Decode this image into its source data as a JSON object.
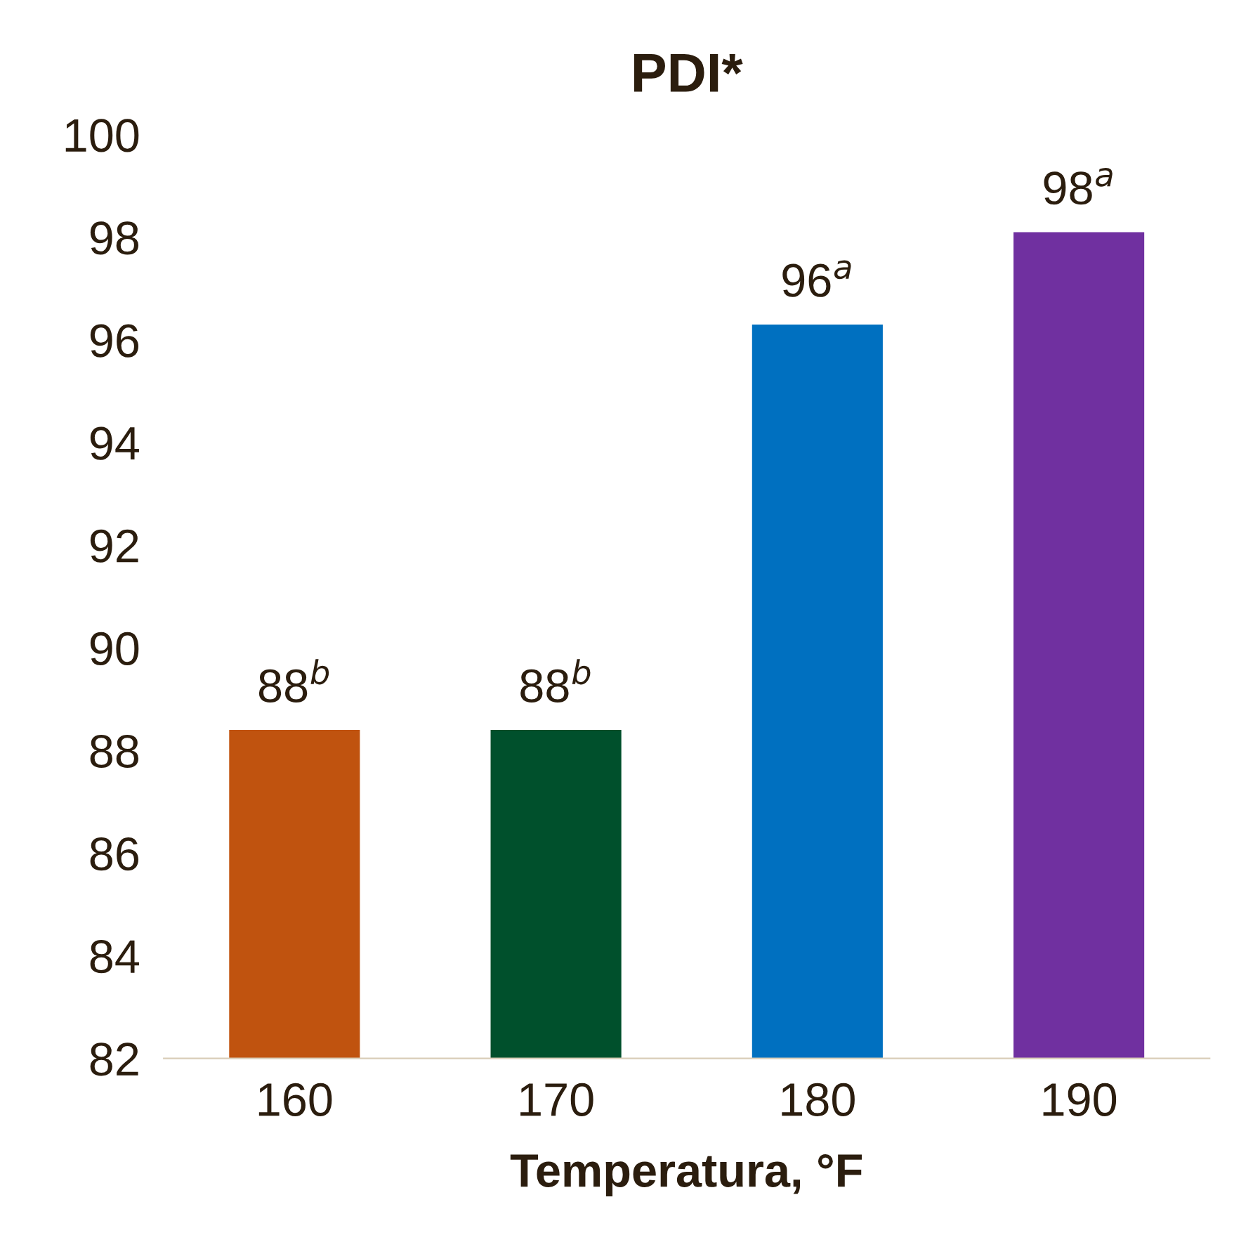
{
  "chart_data": {
    "type": "bar",
    "title": "PDI*",
    "xlabel": "Temperatura, °F",
    "categories": [
      "160",
      "170",
      "180",
      "190"
    ],
    "values": [
      88.4,
      88.4,
      96.3,
      98.1
    ],
    "colors": [
      "#c0530f",
      "#00502c",
      "#0070c0",
      "#7030a0"
    ],
    "value_labels": [
      "88$^{b}$",
      "88$^{b}$",
      "96$^{a}$",
      "98$^{a}$"
    ],
    "ylim": [
      82,
      100
    ],
    "yticks": [
      82,
      84,
      86,
      88,
      90,
      92,
      94,
      96,
      98,
      100
    ],
    "grid": false,
    "legend": false
  }
}
